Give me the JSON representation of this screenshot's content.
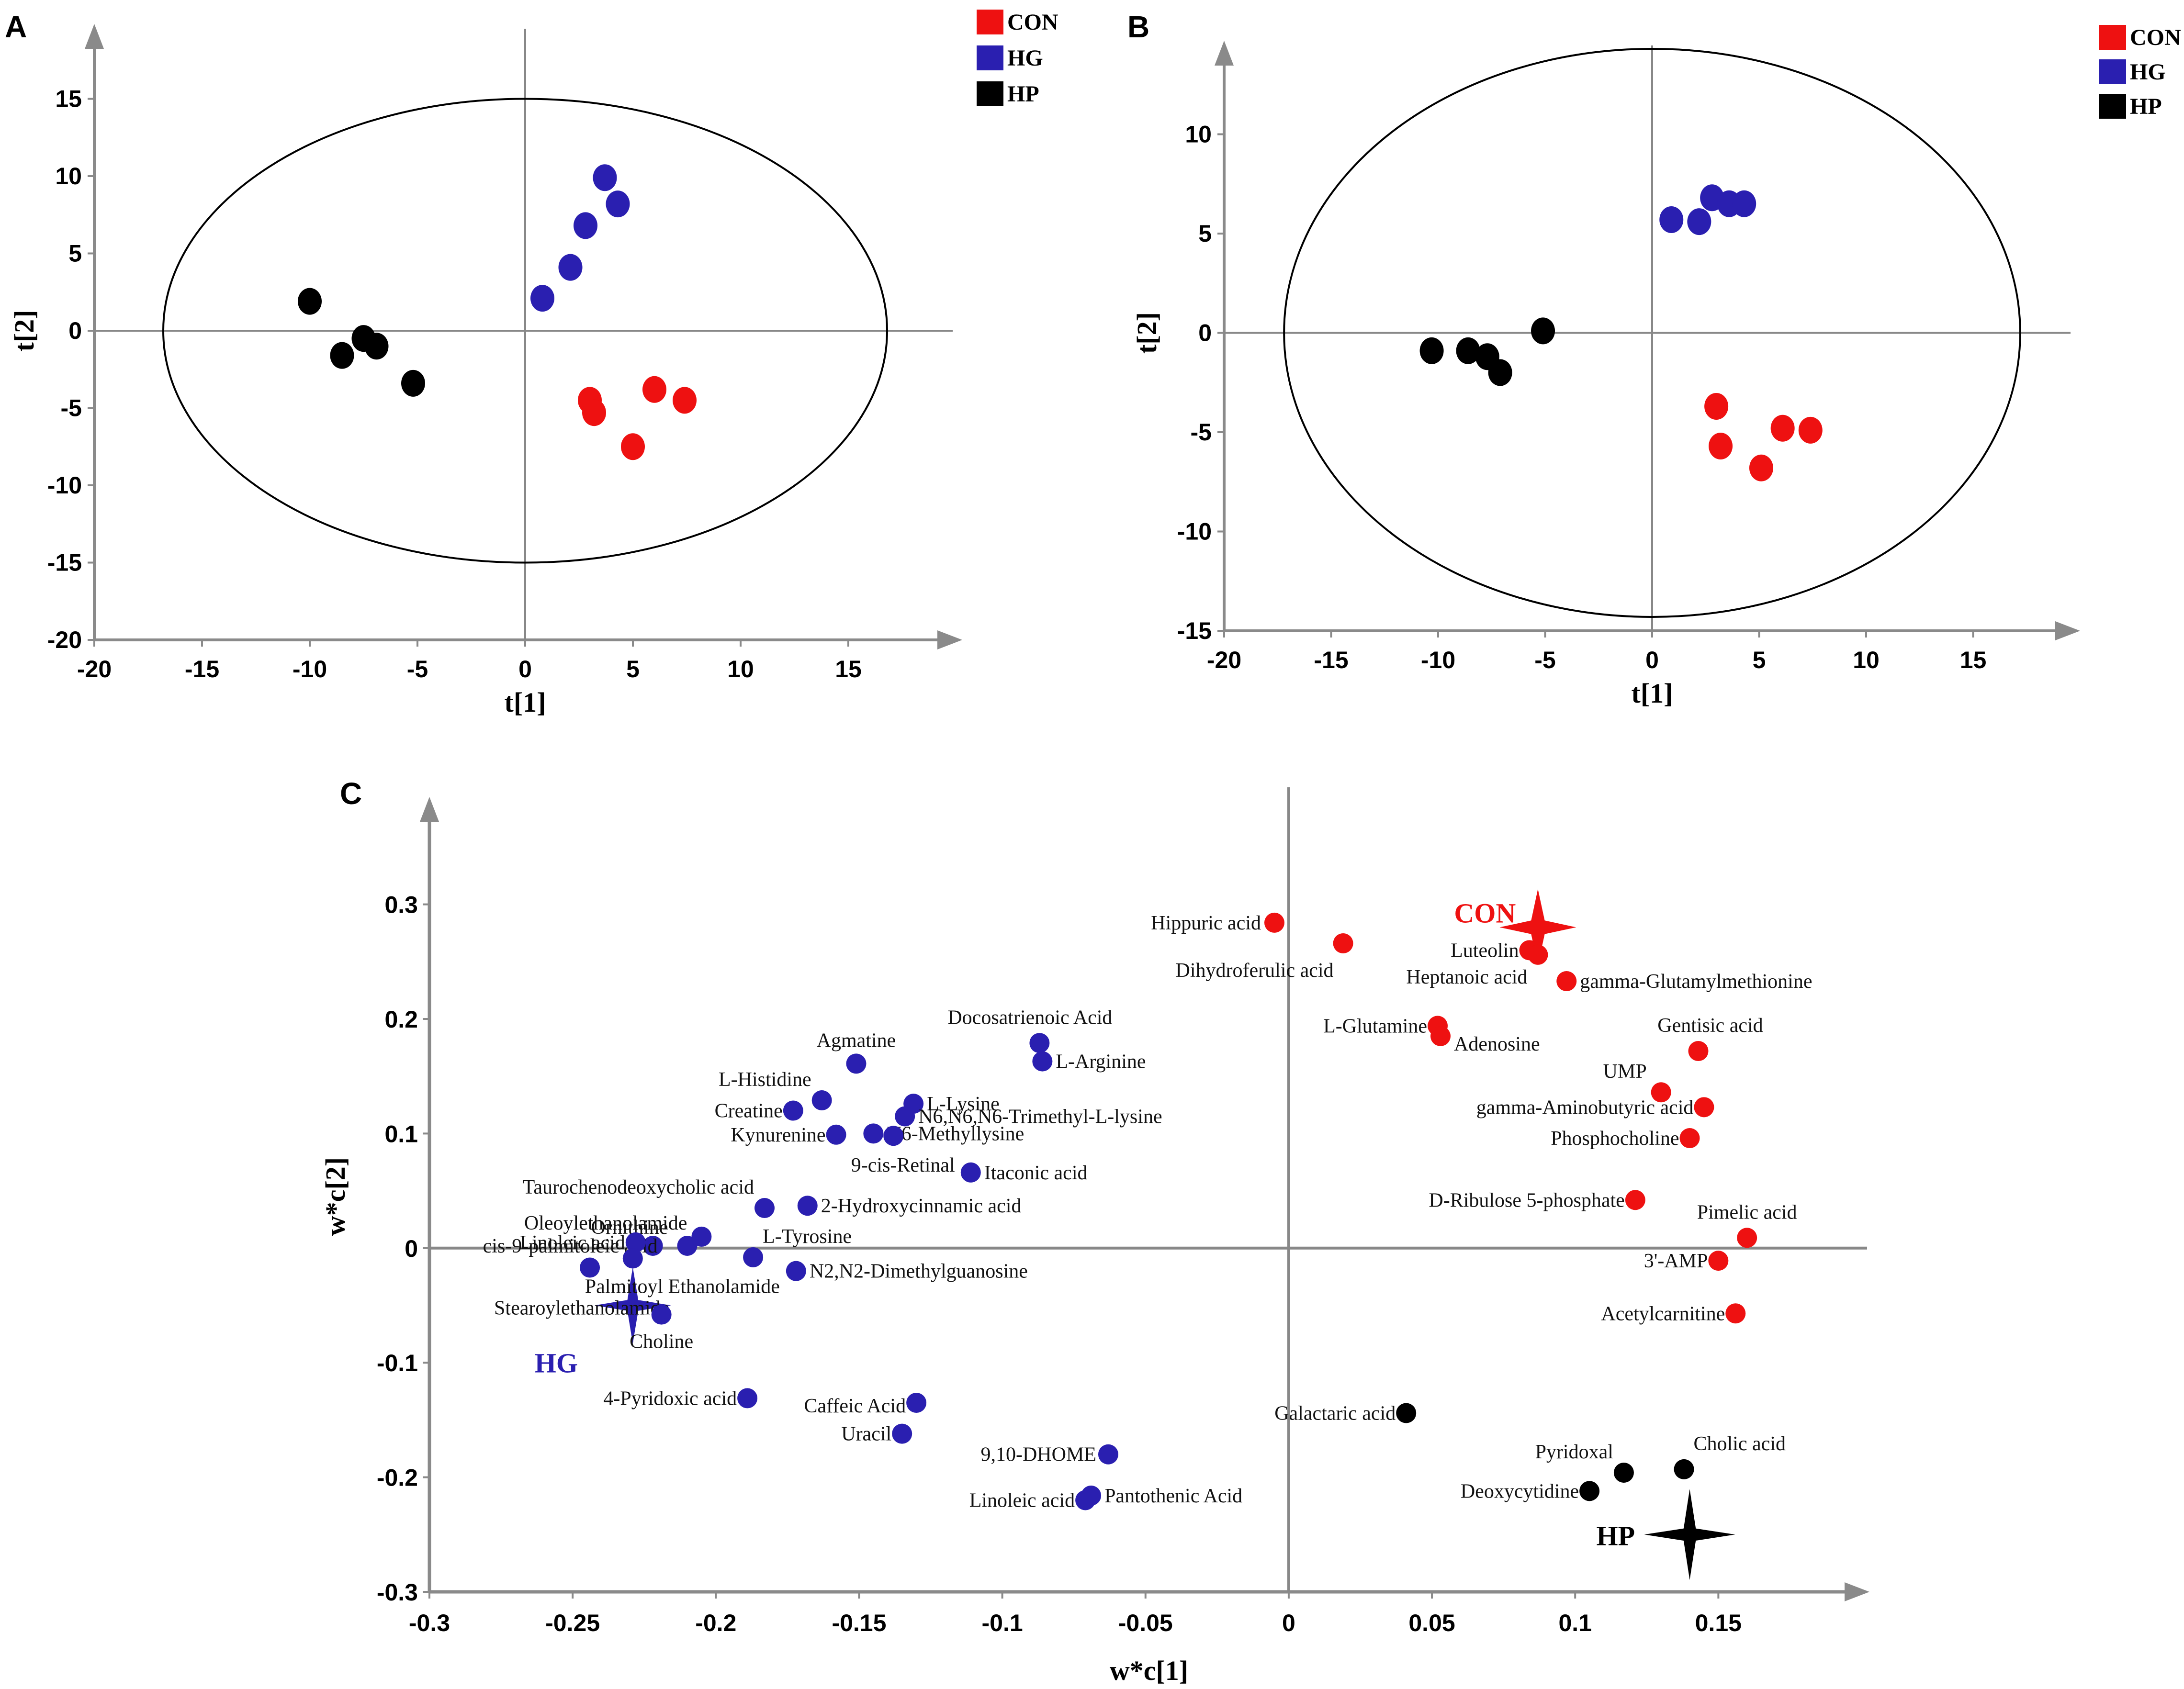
{
  "colors": {
    "CON": "#ee1111",
    "HG": "#2a1fb0",
    "HP": "#000000",
    "axis": "#8a8a8a"
  },
  "chart_data": [
    {
      "panel": "A",
      "type": "scatter",
      "xlabel": "t[1]",
      "ylabel": "t[2]",
      "xlim": [
        -20,
        19
      ],
      "ylim": [
        -20,
        18
      ],
      "xticks": [
        "-20",
        "-15",
        "-10",
        "-5",
        "0",
        "5",
        "10",
        "15"
      ],
      "yticks": [
        "-20",
        "-15",
        "-10",
        "-5",
        "0",
        "5",
        "10",
        "15"
      ],
      "legend": [
        "CON",
        "HG",
        "HP"
      ],
      "ellipse": {
        "rx": 16.8,
        "ry": 15.0
      },
      "series": [
        {
          "name": "CON",
          "points": [
            [
              3.0,
              -4.5
            ],
            [
              3.2,
              -5.3
            ],
            [
              6.0,
              -3.8
            ],
            [
              7.4,
              -4.5
            ],
            [
              5.0,
              -7.5
            ]
          ]
        },
        {
          "name": "HG",
          "points": [
            [
              0.8,
              2.1
            ],
            [
              2.1,
              4.1
            ],
            [
              2.8,
              6.8
            ],
            [
              3.7,
              9.9
            ],
            [
              4.3,
              8.2
            ]
          ]
        },
        {
          "name": "HP",
          "points": [
            [
              -10.0,
              1.9
            ],
            [
              -8.5,
              -1.6
            ],
            [
              -7.5,
              -0.5
            ],
            [
              -6.9,
              -1.0
            ],
            [
              -5.2,
              -3.4
            ]
          ]
        }
      ]
    },
    {
      "panel": "B",
      "type": "scatter",
      "xlabel": "t[1]",
      "ylabel": "t[2]",
      "xlim": [
        -20,
        19
      ],
      "ylim": [
        -15,
        14
      ],
      "xticks": [
        "-20",
        "-15",
        "-10",
        "-5",
        "0",
        "5",
        "10",
        "15"
      ],
      "yticks": [
        "-15",
        "-10",
        "-5",
        "0",
        "5",
        "10"
      ],
      "legend": [
        "CON",
        "HG",
        "HP"
      ],
      "ellipse": {
        "rx": 17.2,
        "ry": 14.3
      },
      "series": [
        {
          "name": "CON",
          "points": [
            [
              3.0,
              -3.7
            ],
            [
              3.2,
              -5.7
            ],
            [
              6.1,
              -4.8
            ],
            [
              7.4,
              -4.9
            ],
            [
              5.1,
              -6.8
            ]
          ]
        },
        {
          "name": "HG",
          "points": [
            [
              0.9,
              5.7
            ],
            [
              2.2,
              5.6
            ],
            [
              2.8,
              6.8
            ],
            [
              3.6,
              6.5
            ],
            [
              4.3,
              6.5
            ]
          ]
        },
        {
          "name": "HP",
          "points": [
            [
              -10.3,
              -0.9
            ],
            [
              -8.6,
              -0.9
            ],
            [
              -7.7,
              -1.2
            ],
            [
              -7.1,
              -2.0
            ],
            [
              -5.1,
              0.1
            ]
          ]
        }
      ]
    },
    {
      "panel": "C",
      "type": "scatter",
      "xlabel": "w*c[1]",
      "ylabel": "w*c[2]",
      "xlim": [
        -0.3,
        0.2
      ],
      "ylim": [
        -0.3,
        0.4
      ],
      "xticks": [
        "-0.3",
        "-0.25",
        "-0.2",
        "-0.15",
        "-0.1",
        "-0.05",
        "0",
        "0.05",
        "0.1",
        "0.15"
      ],
      "yticks": [
        "-0.3",
        "-0.2",
        "-0.1",
        "0",
        "0.1",
        "0.2",
        "0.3"
      ],
      "groups": [
        {
          "name": "CON",
          "x": 0.087,
          "y": 0.28
        },
        {
          "name": "HG",
          "x": -0.229,
          "y": -0.05
        },
        {
          "name": "HP",
          "x": 0.14,
          "y": -0.25
        }
      ],
      "points": [
        {
          "label": "Hippuric acid",
          "x": -0.005,
          "y": 0.284,
          "group": "CON"
        },
        {
          "label": "Dihydroferulic acid",
          "x": 0.019,
          "y": 0.266,
          "group": "CON"
        },
        {
          "label": "Luteolin",
          "x": 0.084,
          "y": 0.26,
          "group": "CON"
        },
        {
          "label": "Heptanoic acid",
          "x": 0.087,
          "y": 0.256,
          "group": "CON"
        },
        {
          "label": "gamma-Glutamylmethionine",
          "x": 0.097,
          "y": 0.233,
          "group": "CON"
        },
        {
          "label": "L-Glutamine",
          "x": 0.052,
          "y": 0.194,
          "group": "CON"
        },
        {
          "label": "Adenosine",
          "x": 0.053,
          "y": 0.185,
          "group": "CON"
        },
        {
          "label": "Gentisic acid",
          "x": 0.143,
          "y": 0.172,
          "group": "CON"
        },
        {
          "label": "UMP",
          "x": 0.13,
          "y": 0.136,
          "group": "CON"
        },
        {
          "label": "gamma-Aminobutyric acid",
          "x": 0.145,
          "y": 0.123,
          "group": "CON"
        },
        {
          "label": "Phosphocholine",
          "x": 0.14,
          "y": 0.096,
          "group": "CON"
        },
        {
          "label": "D-Ribulose 5-phosphate",
          "x": 0.121,
          "y": 0.042,
          "group": "CON"
        },
        {
          "label": "Pimelic acid",
          "x": 0.16,
          "y": 0.009,
          "group": "CON"
        },
        {
          "label": "3'-AMP",
          "x": 0.15,
          "y": -0.011,
          "group": "CON"
        },
        {
          "label": "Acetylcarnitine",
          "x": 0.156,
          "y": -0.057,
          "group": "CON"
        },
        {
          "label": "Docosatrienoic Acid",
          "x": -0.087,
          "y": 0.179,
          "group": "HG"
        },
        {
          "label": "L-Arginine",
          "x": -0.086,
          "y": 0.163,
          "group": "HG"
        },
        {
          "label": "Agmatine",
          "x": -0.151,
          "y": 0.161,
          "group": "HG"
        },
        {
          "label": "L-Histidine",
          "x": -0.163,
          "y": 0.129,
          "group": "HG"
        },
        {
          "label": "L-Lysine",
          "x": -0.131,
          "y": 0.126,
          "group": "HG"
        },
        {
          "label": "Creatine",
          "x": -0.173,
          "y": 0.12,
          "group": "HG"
        },
        {
          "label": "N6,N6,N6-Trimethyl-L-lysine",
          "x": -0.134,
          "y": 0.115,
          "group": "HG"
        },
        {
          "label": "Kynurenine",
          "x": -0.158,
          "y": 0.099,
          "group": "HG"
        },
        {
          "label": "N6-Methyllysine",
          "x": -0.145,
          "y": 0.1,
          "group": "HG"
        },
        {
          "label": "9-cis-Retinal",
          "x": -0.138,
          "y": 0.098,
          "group": "HG"
        },
        {
          "label": "Itaconic acid",
          "x": -0.111,
          "y": 0.066,
          "group": "HG"
        },
        {
          "label": "Taurochenodeoxycholic acid",
          "x": -0.183,
          "y": 0.035,
          "group": "HG"
        },
        {
          "label": "2-Hydroxycinnamic acid",
          "x": -0.168,
          "y": 0.037,
          "group": "HG"
        },
        {
          "label": "Oleoylethanolamide",
          "x": -0.205,
          "y": 0.01,
          "group": "HG"
        },
        {
          "label": "Ornithine",
          "x": -0.21,
          "y": 0.002,
          "group": "HG"
        },
        {
          "label": "L-Tyrosine",
          "x": -0.187,
          "y": -0.008,
          "group": "HG"
        },
        {
          "label": "cis-9-palmitoleic acid",
          "x": -0.222,
          "y": 0.002,
          "group": "HG"
        },
        {
          "label": "Linoleic acid",
          "x": -0.228,
          "y": 0.005,
          "group": "HG"
        },
        {
          "label": "N2,N2-Dimethylguanosine",
          "x": -0.172,
          "y": -0.02,
          "group": "HG"
        },
        {
          "label": "Palmitoyl Ethanolamide",
          "x": -0.229,
          "y": -0.009,
          "group": "HG"
        },
        {
          "label": "Stearoylethanolamide",
          "x": -0.244,
          "y": -0.017,
          "group": "HG"
        },
        {
          "label": "Choline",
          "x": -0.219,
          "y": -0.058,
          "group": "HG"
        },
        {
          "label": "4-Pyridoxic acid",
          "x": -0.189,
          "y": -0.131,
          "group": "HG"
        },
        {
          "label": "Caffeic Acid",
          "x": -0.13,
          "y": -0.135,
          "group": "HG"
        },
        {
          "label": "Uracil",
          "x": -0.135,
          "y": -0.162,
          "group": "HG"
        },
        {
          "label": "9,10-DHOME",
          "x": -0.063,
          "y": -0.18,
          "group": "HG"
        },
        {
          "label": "Linoleic acid",
          "x": -0.071,
          "y": -0.22,
          "group": "HG"
        },
        {
          "label": "Pantothenic Acid",
          "x": -0.069,
          "y": -0.216,
          "group": "HG"
        },
        {
          "label": "Galactaric acid",
          "x": 0.041,
          "y": -0.144,
          "group": "HP"
        },
        {
          "label": "Cholic acid",
          "x": 0.138,
          "y": -0.193,
          "group": "HP"
        },
        {
          "label": "Pyridoxal",
          "x": 0.117,
          "y": -0.196,
          "group": "HP"
        },
        {
          "label": "Deoxycytidine",
          "x": 0.105,
          "y": -0.212,
          "group": "HP"
        }
      ]
    }
  ]
}
